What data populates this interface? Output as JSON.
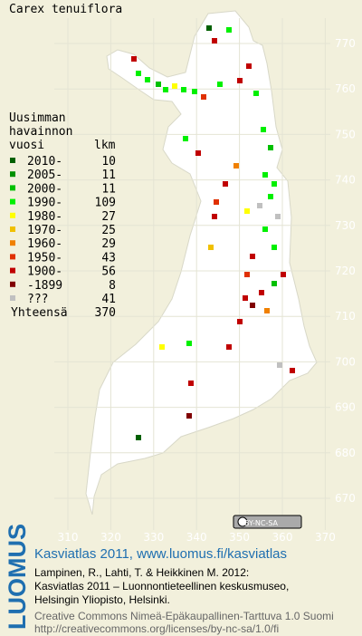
{
  "map": {
    "title": "Carex tenuiflora",
    "grid": {
      "northing": [
        770,
        760,
        750,
        740,
        730,
        720,
        710,
        700,
        690,
        680,
        670
      ],
      "easting": [
        310,
        320,
        330,
        340,
        350,
        360,
        370
      ]
    },
    "legend": {
      "heading": [
        "Uusimman",
        "havainnon",
        "vuosi"
      ],
      "count_heading": "lkm",
      "rows": [
        {
          "label": "2010-",
          "count": 10,
          "color": "#006000"
        },
        {
          "label": "2005-",
          "count": 11,
          "color": "#009000"
        },
        {
          "label": "2000-",
          "count": 11,
          "color": "#00c000"
        },
        {
          "label": "1990-",
          "count": 109,
          "color": "#00f000"
        },
        {
          "label": "1980-",
          "count": 27,
          "color": "#ffff00"
        },
        {
          "label": "1970-",
          "count": 25,
          "color": "#f0c000"
        },
        {
          "label": "1960-",
          "count": 29,
          "color": "#f08000"
        },
        {
          "label": "1950-",
          "count": 43,
          "color": "#e03000"
        },
        {
          "label": "1900-",
          "count": 56,
          "color": "#c00000"
        },
        {
          "label": "-1899",
          "count": 8,
          "color": "#800000"
        },
        {
          "label": "???",
          "count": 41,
          "color": "#c0c0c0"
        }
      ],
      "total_label": "Yhteensä",
      "total": 370
    }
  },
  "footer": {
    "logo": "LUOMUS",
    "link": "Kasviatlas 2011, www.luomus.fi/kasviatlas",
    "citation": [
      "Lampinen, R., Lahti, T. & Heikkinen M. 2012:",
      "Kasviatlas 2011 – Luonnontieteellinen keskusmuseo,",
      "Helsingin Yliopisto, Helsinki."
    ],
    "license": [
      "Creative Commons Nimeä-Epäkaupallinen-Tarttuva 1.0 Suomi",
      "http://creativecommons.org/licenses/by-nc-sa/1.0/fi"
    ],
    "badge": "BY-NC-SA"
  }
}
